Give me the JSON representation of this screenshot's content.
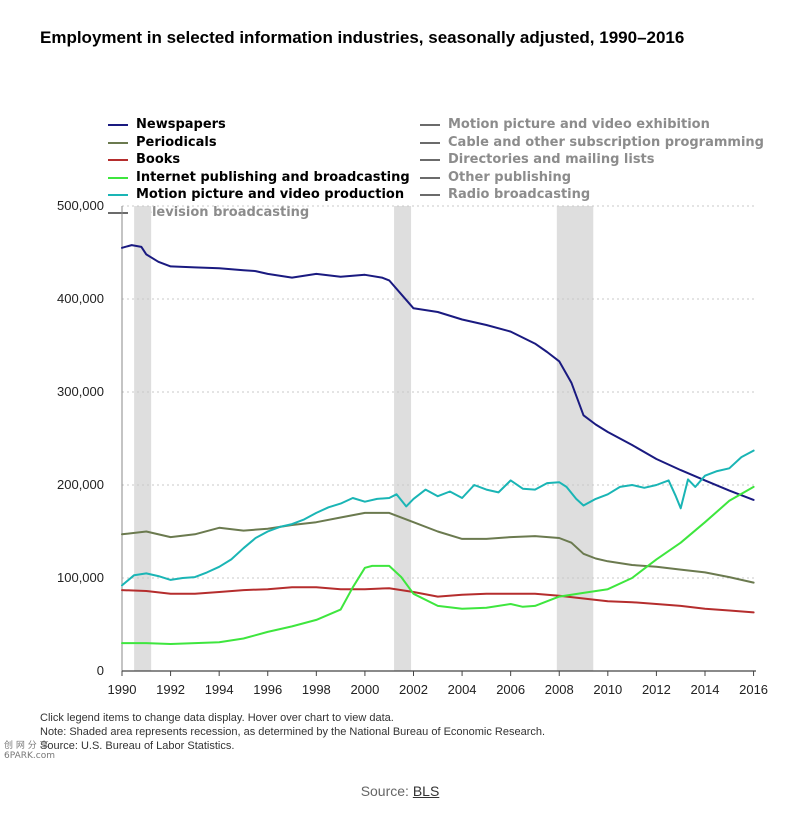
{
  "title": "Employment in selected information industries, seasonally adjusted, 1990–2016",
  "legend": {
    "left": [
      {
        "label": "Newspapers",
        "color": "#1a1a80",
        "active": true
      },
      {
        "label": "Periodicals",
        "color": "#6b7a4f",
        "active": true
      },
      {
        "label": "Books",
        "color": "#b52d2d",
        "active": true
      },
      {
        "label": "Internet publishing and broadcasting",
        "color": "#3ee63e",
        "active": true
      },
      {
        "label": "Motion picture and video production",
        "color": "#1ab5b5",
        "active": true
      },
      {
        "label": "Television broadcasting",
        "color": "#6b6b6b",
        "active": false
      }
    ],
    "right": [
      {
        "label": "Motion picture and video exhibition",
        "color": "#6b6b6b",
        "active": false
      },
      {
        "label": "Cable and other subscription programming",
        "color": "#6b6b6b",
        "active": false
      },
      {
        "label": "Directories and mailing lists",
        "color": "#6b6b6b",
        "active": false
      },
      {
        "label": "Other publishing",
        "color": "#6b6b6b",
        "active": false
      },
      {
        "label": "Radio broadcasting",
        "color": "#6b6b6b",
        "active": false
      }
    ]
  },
  "notes": [
    "Click legend items to change data display. Hover over chart to view data.",
    "Note: Shaded area represents recession, as determined by the National Bureau of Economic Research.",
    "Source: U.S. Bureau of Labor Statistics."
  ],
  "source_prefix": "Source: ",
  "source_link": "BLS",
  "watermark": [
    "创 网 分 享",
    "6PARK.com"
  ],
  "chart_data": {
    "type": "line",
    "title": "Employment in selected information industries, seasonally adjusted, 1990–2016",
    "xlabel": "",
    "ylabel": "",
    "xlim": [
      1990,
      2016.1
    ],
    "ylim": [
      0,
      500000
    ],
    "x_ticks": [
      1990,
      1992,
      1994,
      1996,
      1998,
      2000,
      2002,
      2004,
      2006,
      2008,
      2010,
      2012,
      2014,
      2016
    ],
    "x_tick_labels": [
      "1990",
      "1992",
      "1994",
      "1996",
      "1998",
      "2000",
      "2002",
      "2004",
      "2006",
      "2008",
      "2010",
      "2012",
      "2014",
      "2016"
    ],
    "y_ticks": [
      0,
      100000,
      200000,
      300000,
      400000,
      500000
    ],
    "y_tick_labels": [
      "0",
      "100,000",
      "200,000",
      "300,000",
      "400,000",
      "500,000"
    ],
    "grid": "horizontal dotted",
    "legend_position": "top",
    "recessions": [
      [
        1990.5,
        1991.2
      ],
      [
        2001.2,
        2001.9
      ],
      [
        2007.9,
        2009.4
      ]
    ],
    "series": [
      {
        "name": "Newspapers",
        "color": "#1a1a80",
        "x": [
          1990,
          1990.4,
          1990.8,
          1991,
          1991.5,
          1992,
          1993,
          1994,
          1995,
          1995.5,
          1996,
          1997,
          1998,
          1999,
          2000,
          2000.7,
          2001,
          2001.5,
          2002,
          2003,
          2004,
          2005,
          2006,
          2007,
          2007.5,
          2008,
          2008.5,
          2009,
          2009.5,
          2010,
          2011,
          2012,
          2013,
          2014,
          2015,
          2016
        ],
        "y": [
          455000,
          458000,
          456000,
          448000,
          440000,
          435000,
          434000,
          433000,
          431000,
          430000,
          427000,
          423000,
          427000,
          424000,
          426000,
          423000,
          420000,
          405000,
          390000,
          386000,
          378000,
          372000,
          365000,
          352000,
          343000,
          333000,
          310000,
          275000,
          265000,
          257000,
          243000,
          228000,
          216000,
          205000,
          194000,
          184000
        ]
      },
      {
        "name": "Periodicals",
        "color": "#6b7a4f",
        "x": [
          1990,
          1991,
          1992,
          1993,
          1994,
          1995,
          1996,
          1997,
          1998,
          1999,
          2000,
          2001,
          2002,
          2003,
          2004,
          2005,
          2006,
          2007,
          2008,
          2008.5,
          2009,
          2009.5,
          2010,
          2011,
          2012,
          2013,
          2014,
          2015,
          2016
        ],
        "y": [
          147000,
          150000,
          144000,
          147000,
          154000,
          151000,
          153000,
          157000,
          160000,
          165000,
          170000,
          170000,
          160000,
          150000,
          142000,
          142000,
          144000,
          145000,
          143000,
          138000,
          126000,
          121000,
          118000,
          114000,
          112000,
          109000,
          106000,
          101000,
          95000
        ]
      },
      {
        "name": "Books",
        "color": "#b52d2d",
        "x": [
          1990,
          1991,
          1992,
          1993,
          1994,
          1995,
          1996,
          1997,
          1998,
          1999,
          2000,
          2001,
          2002,
          2003,
          2004,
          2005,
          2006,
          2007,
          2008,
          2009,
          2010,
          2011,
          2012,
          2013,
          2014,
          2015,
          2016
        ],
        "y": [
          87000,
          86000,
          83000,
          83000,
          85000,
          87000,
          88000,
          90000,
          90000,
          88000,
          88000,
          89000,
          85000,
          80000,
          82000,
          83000,
          83000,
          83000,
          81000,
          78000,
          75000,
          74000,
          72000,
          70000,
          67000,
          65000,
          63000
        ]
      },
      {
        "name": "Internet publishing and broadcasting",
        "color": "#3ee63e",
        "x": [
          1990,
          1991,
          1992,
          1993,
          1994,
          1995,
          1996,
          1997,
          1998,
          1999,
          1999.5,
          2000,
          2000.3,
          2001,
          2001.5,
          2002,
          2003,
          2004,
          2005,
          2006,
          2006.5,
          2007,
          2008,
          2009,
          2010,
          2011,
          2012,
          2013,
          2014,
          2015,
          2016
        ],
        "y": [
          30000,
          30000,
          29000,
          30000,
          31000,
          35000,
          42000,
          48000,
          55000,
          66000,
          90000,
          111000,
          113000,
          113000,
          101000,
          83000,
          70000,
          67000,
          68000,
          72000,
          69000,
          70000,
          80000,
          84000,
          88000,
          100000,
          120000,
          138000,
          160000,
          183000,
          198000
        ]
      },
      {
        "name": "Motion picture and video production",
        "color": "#1ab5b5",
        "x": [
          1990,
          1990.5,
          1991,
          1991.5,
          1992,
          1992.5,
          1993,
          1993.5,
          1994,
          1994.5,
          1995,
          1995.5,
          1996,
          1996.5,
          1997,
          1997.5,
          1998,
          1998.5,
          1999,
          1999.5,
          2000,
          2000.5,
          2001,
          2001.3,
          2001.7,
          2002,
          2002.5,
          2003,
          2003.5,
          2004,
          2004.5,
          2005,
          2005.5,
          2006,
          2006.5,
          2007,
          2007.5,
          2008,
          2008.3,
          2008.7,
          2009,
          2009.5,
          2010,
          2010.5,
          2011,
          2011.5,
          2012,
          2012.5,
          2012.8,
          2013,
          2013.3,
          2013.6,
          2014,
          2014.5,
          2015,
          2015.5,
          2016
        ],
        "y": [
          92000,
          103000,
          105000,
          102000,
          98000,
          100000,
          101000,
          106000,
          112000,
          120000,
          132000,
          143000,
          150000,
          155000,
          158000,
          163000,
          170000,
          176000,
          180000,
          186000,
          182000,
          185000,
          186000,
          190000,
          177000,
          185000,
          195000,
          188000,
          193000,
          186000,
          200000,
          195000,
          192000,
          205000,
          196000,
          195000,
          202000,
          203000,
          198000,
          185000,
          178000,
          185000,
          190000,
          198000,
          200000,
          197000,
          200000,
          205000,
          188000,
          175000,
          206000,
          198000,
          210000,
          215000,
          218000,
          230000,
          237000
        ]
      }
    ]
  }
}
